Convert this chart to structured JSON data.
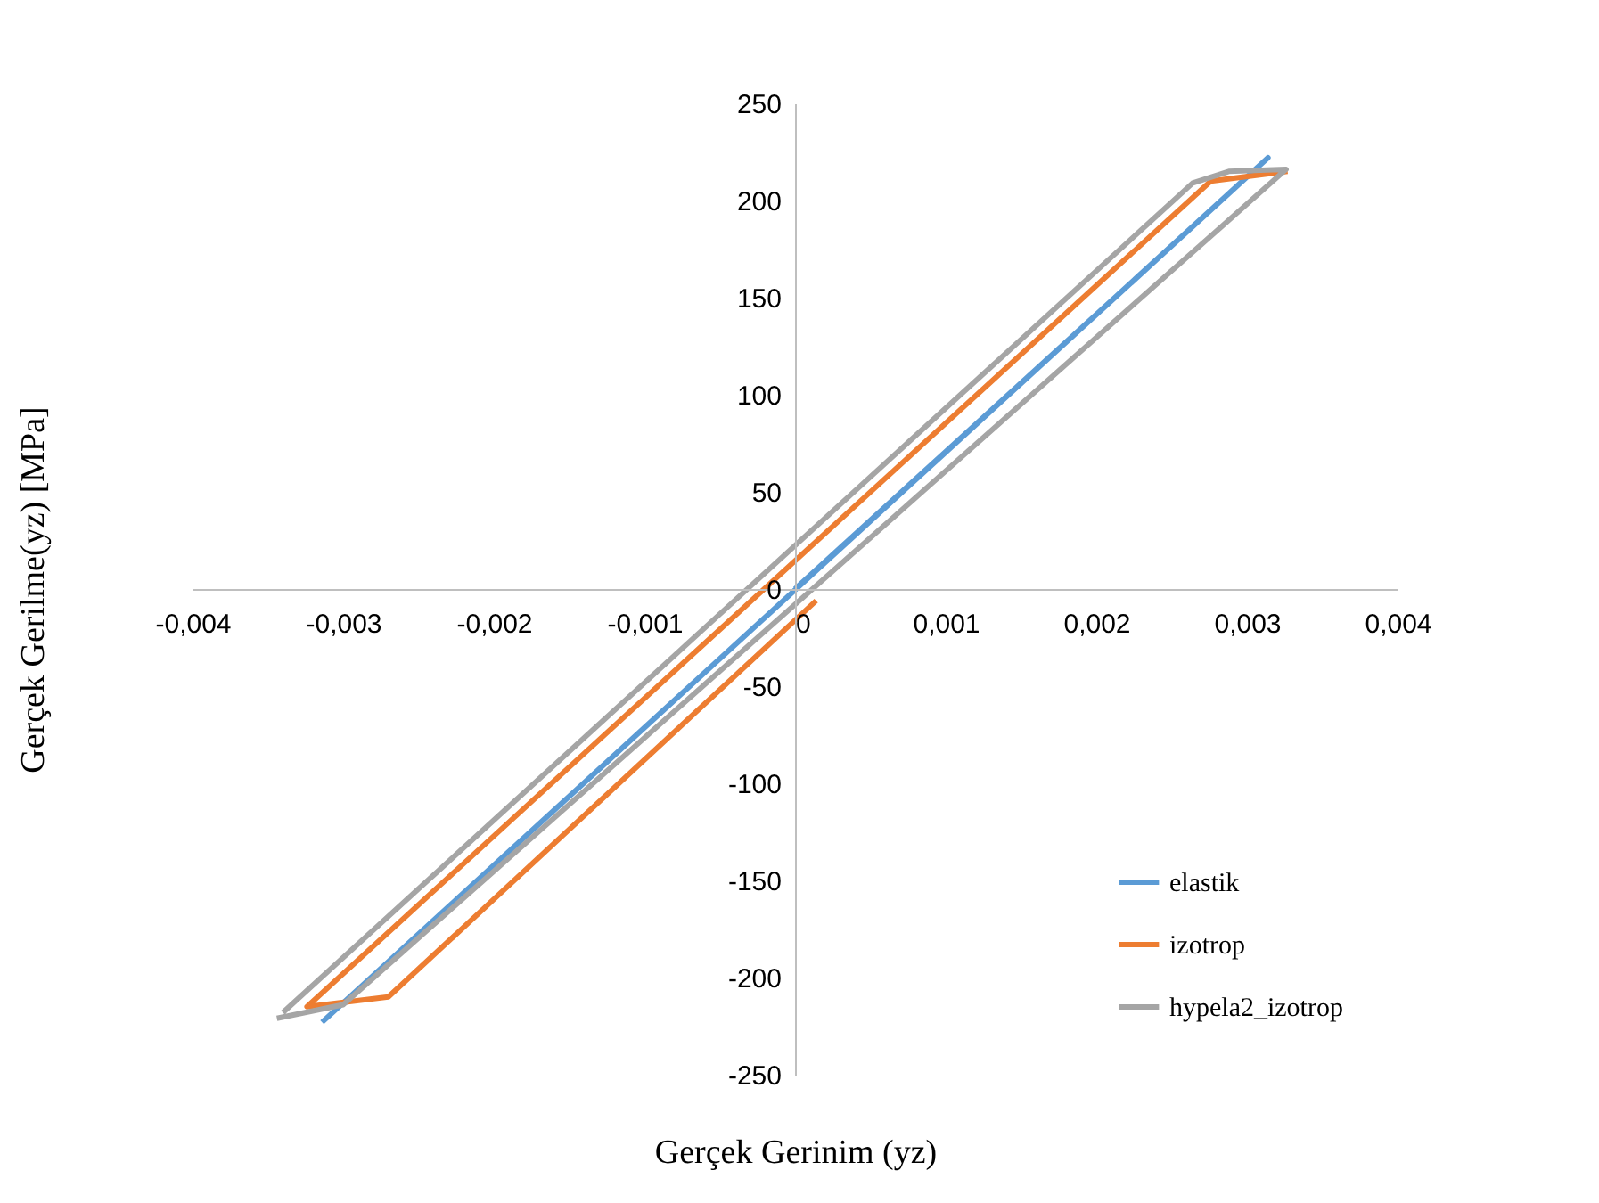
{
  "chart_data": {
    "type": "line",
    "xlabel": "Gerçek Gerinim (yz)",
    "ylabel": "Gerçek Gerilme(yz)  [MPa]",
    "series": [
      {
        "name": "elastik",
        "color": "#5b9bd5",
        "x": [
          0,
          0.00314,
          -0.00314
        ],
        "values": [
          0,
          222,
          -223
        ]
      },
      {
        "name": "izotrop",
        "color": "#ed7d31",
        "x": [
          0.00327,
          0.00276,
          -0.00324,
          -0.0027,
          0.00014
        ],
        "values": [
          215,
          210,
          -215,
          -210,
          -6
        ]
      },
      {
        "name": "hypela2_izotrop",
        "color": "#a5a5a5",
        "x": [
          -0.00344,
          -0.003,
          0.00326,
          0.00288,
          0.00264,
          -0.0034
        ],
        "values": [
          -221,
          -214,
          216,
          215,
          209,
          -218
        ]
      }
    ],
    "xlim": [
      -0.004,
      0.004
    ],
    "xticks": [
      {
        "value": -0.004,
        "label": "-0,004"
      },
      {
        "value": -0.003,
        "label": "-0,003"
      },
      {
        "value": -0.002,
        "label": "-0,002"
      },
      {
        "value": -0.001,
        "label": "-0,001"
      },
      0,
      {
        "value": 0.001,
        "label": "0,001"
      },
      {
        "value": 0.002,
        "label": "0,002"
      },
      {
        "value": 0.003,
        "label": "0,003"
      },
      {
        "value": 0.004,
        "label": "0,004"
      }
    ],
    "ylim": [
      -250,
      250
    ],
    "yticks": [
      -250,
      -200,
      -150,
      -100,
      -50,
      0,
      50,
      100,
      150,
      200,
      250
    ],
    "grid": false,
    "legend": "bottom right",
    "marker": "none",
    "line_style": "solid"
  }
}
